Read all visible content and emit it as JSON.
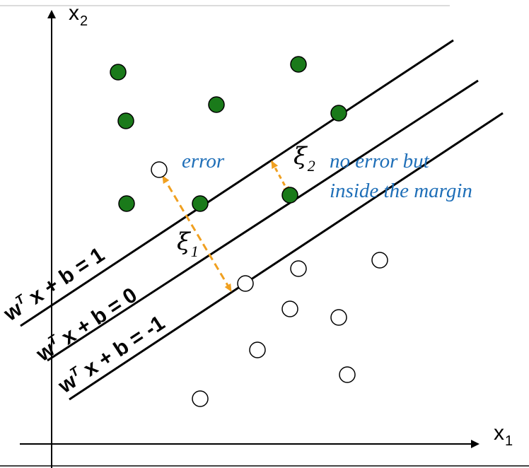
{
  "axes": {
    "x_label": "x",
    "x_sub": "1",
    "y_label": "x",
    "y_sub": "2"
  },
  "equations": {
    "upper": {
      "lhs": "w",
      "sup": "T",
      "rhs": " x + b = 1"
    },
    "middle": {
      "lhs": "w",
      "sup": "T",
      "rhs": " x + b = 0"
    },
    "lower": {
      "lhs": "w",
      "sup": "T",
      "rhs": " x + b = -1"
    }
  },
  "annotations": {
    "error": "error",
    "no_error_line1": "no error but",
    "no_error_line2": "inside the margin",
    "xi1_symbol": "ξ",
    "xi1_sub": "1",
    "xi2_symbol": "ξ",
    "xi2_sub": "2"
  },
  "colors": {
    "positive_fill": "#1a7a1a",
    "negative_fill": "#ffffff",
    "slack_arrow": "#f0a020",
    "annotation_text": "#1f6fb8"
  }
}
